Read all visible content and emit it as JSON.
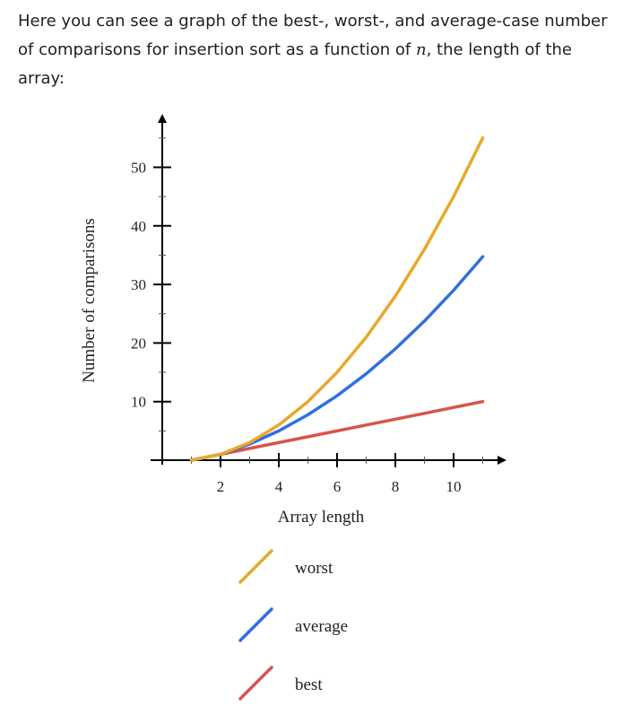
{
  "intro": {
    "text_before": "Here you can see a graph of the best-, worst-, and average-case number of comparisons for insertion sort as a function of ",
    "variable": "n",
    "text_after": ", the length of the array:"
  },
  "chart_data": {
    "type": "line",
    "xlabel": "Array length",
    "ylabel": "Number of comparisons",
    "xlim": [
      0,
      11.8
    ],
    "ylim": [
      -1,
      58
    ],
    "x_ticks": [
      2,
      4,
      6,
      8,
      10
    ],
    "y_ticks": [
      10,
      20,
      30,
      40,
      50
    ],
    "grid": false,
    "legend_position": "bottom",
    "x": [
      1,
      2,
      3,
      4,
      5,
      6,
      7,
      8,
      9,
      10,
      11
    ],
    "series": [
      {
        "name": "worst",
        "color": "#E9A82B",
        "values": [
          0,
          1,
          3,
          6,
          10,
          15,
          21,
          28,
          36,
          45,
          55
        ]
      },
      {
        "name": "average",
        "color": "#2F6FE0",
        "values": [
          0,
          1,
          2.75,
          5,
          7.75,
          11,
          14.75,
          19,
          23.75,
          29,
          34.75
        ]
      },
      {
        "name": "best",
        "color": "#D9534A",
        "values": [
          0,
          1,
          2,
          3,
          4,
          5,
          6,
          7,
          8,
          9,
          10
        ]
      }
    ]
  }
}
